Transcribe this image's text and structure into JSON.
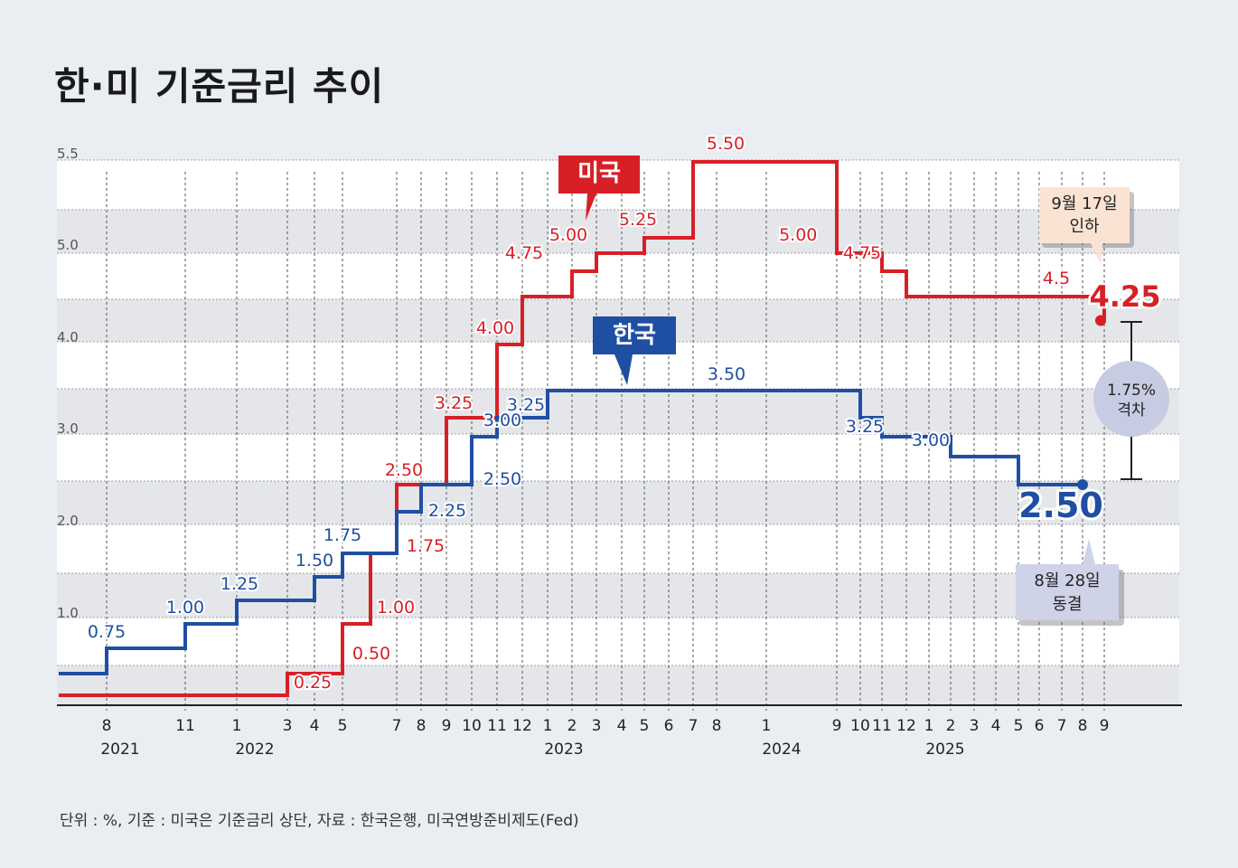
{
  "title": "한·미 기준금리 추이",
  "footnote": "단위 : %, 기준 : 미국은 기준금리 상단, 자료 : 한국은행, 미국연방준비제도(Fed)",
  "colors": {
    "us": "#d81f26",
    "kr": "#1f4fa3",
    "background": "#eaedf1"
  },
  "chart_data": {
    "type": "line",
    "title": "한·미 기준금리 추이",
    "y_ticks": [
      "5.5",
      "5.0",
      "4.0",
      "3.0",
      "2.0",
      "1.0"
    ],
    "x_month_labels": [
      "8",
      "11",
      "1",
      "3",
      "4",
      "5",
      "7",
      "8",
      "9",
      "10",
      "11",
      "12",
      "1",
      "2",
      "3",
      "4",
      "5",
      "6",
      "7",
      "8",
      "1",
      "9",
      "10",
      "11",
      "12",
      "1",
      "2",
      "3",
      "4",
      "5",
      "6",
      "7",
      "8",
      "9"
    ],
    "x_year_labels": [
      "2021",
      "2022",
      "2023",
      "2024",
      "2025"
    ],
    "grid": true,
    "series": [
      {
        "name": "미국",
        "color": "#d81f26",
        "steps": [
          {
            "date": "2021-06",
            "value": 0.25
          },
          {
            "date": "2022-03",
            "value": 0.5
          },
          {
            "date": "2022-05",
            "value": 1.0
          },
          {
            "date": "2022-06",
            "value": 1.75
          },
          {
            "date": "2022-07",
            "value": 2.5
          },
          {
            "date": "2022-09",
            "value": 3.25
          },
          {
            "date": "2022-11",
            "value": 4.0
          },
          {
            "date": "2022-12",
            "value": 4.5
          },
          {
            "date": "2023-02",
            "value": 4.75
          },
          {
            "date": "2023-03",
            "value": 5.0
          },
          {
            "date": "2023-05",
            "value": 5.25
          },
          {
            "date": "2023-07",
            "value": 5.5
          },
          {
            "date": "2024-09",
            "value": 5.0
          },
          {
            "date": "2024-11",
            "value": 4.75
          },
          {
            "date": "2024-12",
            "value": 4.5
          },
          {
            "date": "2025-09",
            "value": 4.25
          }
        ],
        "end_date": "2025-09",
        "labels": [
          {
            "date": "2022-03",
            "value": 0.25,
            "text": "0.25"
          },
          {
            "date": "2022-05",
            "value": 0.5,
            "text": "0.50"
          },
          {
            "date": "2022-06",
            "value": 1.0,
            "text": "1.00"
          },
          {
            "date": "2022-07",
            "value": 1.75,
            "text": "1.75"
          },
          {
            "date": "2022-07",
            "value": 2.5,
            "text": "2.50"
          },
          {
            "date": "2022-09",
            "value": 3.25,
            "text": "3.25"
          },
          {
            "date": "2022-11",
            "value": 4.0,
            "text": "4.00"
          },
          {
            "date": "2022-12",
            "value": 4.75,
            "text": "4.75"
          },
          {
            "date": "2023-02",
            "value": 5.0,
            "text": "5.00"
          },
          {
            "date": "2023-04",
            "value": 5.25,
            "text": "5.25"
          },
          {
            "date": "2023-10",
            "value": 5.5,
            "text": "5.50"
          },
          {
            "date": "2024-08",
            "value": 5.0,
            "text": "5.00"
          },
          {
            "date": "2024-10",
            "value": 4.75,
            "text": "4.75"
          },
          {
            "date": "2025-07",
            "value": 4.5,
            "text": "4.5"
          }
        ],
        "tag": "미국",
        "final_value": "4.25",
        "callout": {
          "line1": "9월 17일",
          "line2": "인하"
        }
      },
      {
        "name": "한국",
        "color": "#1f4fa3",
        "start_date": "2021-06",
        "start_value": 0.5,
        "steps": [
          {
            "date": "2021-08",
            "value": 0.75
          },
          {
            "date": "2021-11",
            "value": 1.0
          },
          {
            "date": "2022-01",
            "value": 1.25
          },
          {
            "date": "2022-04",
            "value": 1.5
          },
          {
            "date": "2022-05",
            "value": 1.75
          },
          {
            "date": "2022-07",
            "value": 2.25
          },
          {
            "date": "2022-08",
            "value": 2.5
          },
          {
            "date": "2022-10",
            "value": 3.0
          },
          {
            "date": "2022-11",
            "value": 3.25
          },
          {
            "date": "2023-01",
            "value": 3.5
          },
          {
            "date": "2024-10",
            "value": 3.25
          },
          {
            "date": "2024-11",
            "value": 3.0
          },
          {
            "date": "2025-02",
            "value": 2.75
          },
          {
            "date": "2025-05",
            "value": 2.5
          }
        ],
        "end_date": "2025-08",
        "labels": [
          {
            "date": "2021-08",
            "value": 0.75,
            "text": "0.75"
          },
          {
            "date": "2021-11",
            "value": 1.0,
            "text": "1.00"
          },
          {
            "date": "2022-01",
            "value": 1.25,
            "text": "1.25"
          },
          {
            "date": "2022-04",
            "value": 1.5,
            "text": "1.50"
          },
          {
            "date": "2022-05",
            "value": 1.75,
            "text": "1.75"
          },
          {
            "date": "2022-08",
            "value": 2.25,
            "text": "2.25"
          },
          {
            "date": "2022-10",
            "value": 2.5,
            "text": "2.50"
          },
          {
            "date": "2022-10",
            "value": 3.0,
            "text": "3.00"
          },
          {
            "date": "2022-12",
            "value": 3.25,
            "text": "3.25"
          },
          {
            "date": "2023-10",
            "value": 3.5,
            "text": "3.50"
          },
          {
            "date": "2024-10",
            "value": 3.25,
            "text": "3.25"
          },
          {
            "date": "2024-12",
            "value": 3.0,
            "text": "3.00"
          }
        ],
        "tag": "한국",
        "final_value": "2.50",
        "callout": {
          "line1": "8월 28일",
          "line2": "동결"
        }
      }
    ],
    "gap": {
      "line1": "1.75%",
      "line2": "격차"
    }
  }
}
